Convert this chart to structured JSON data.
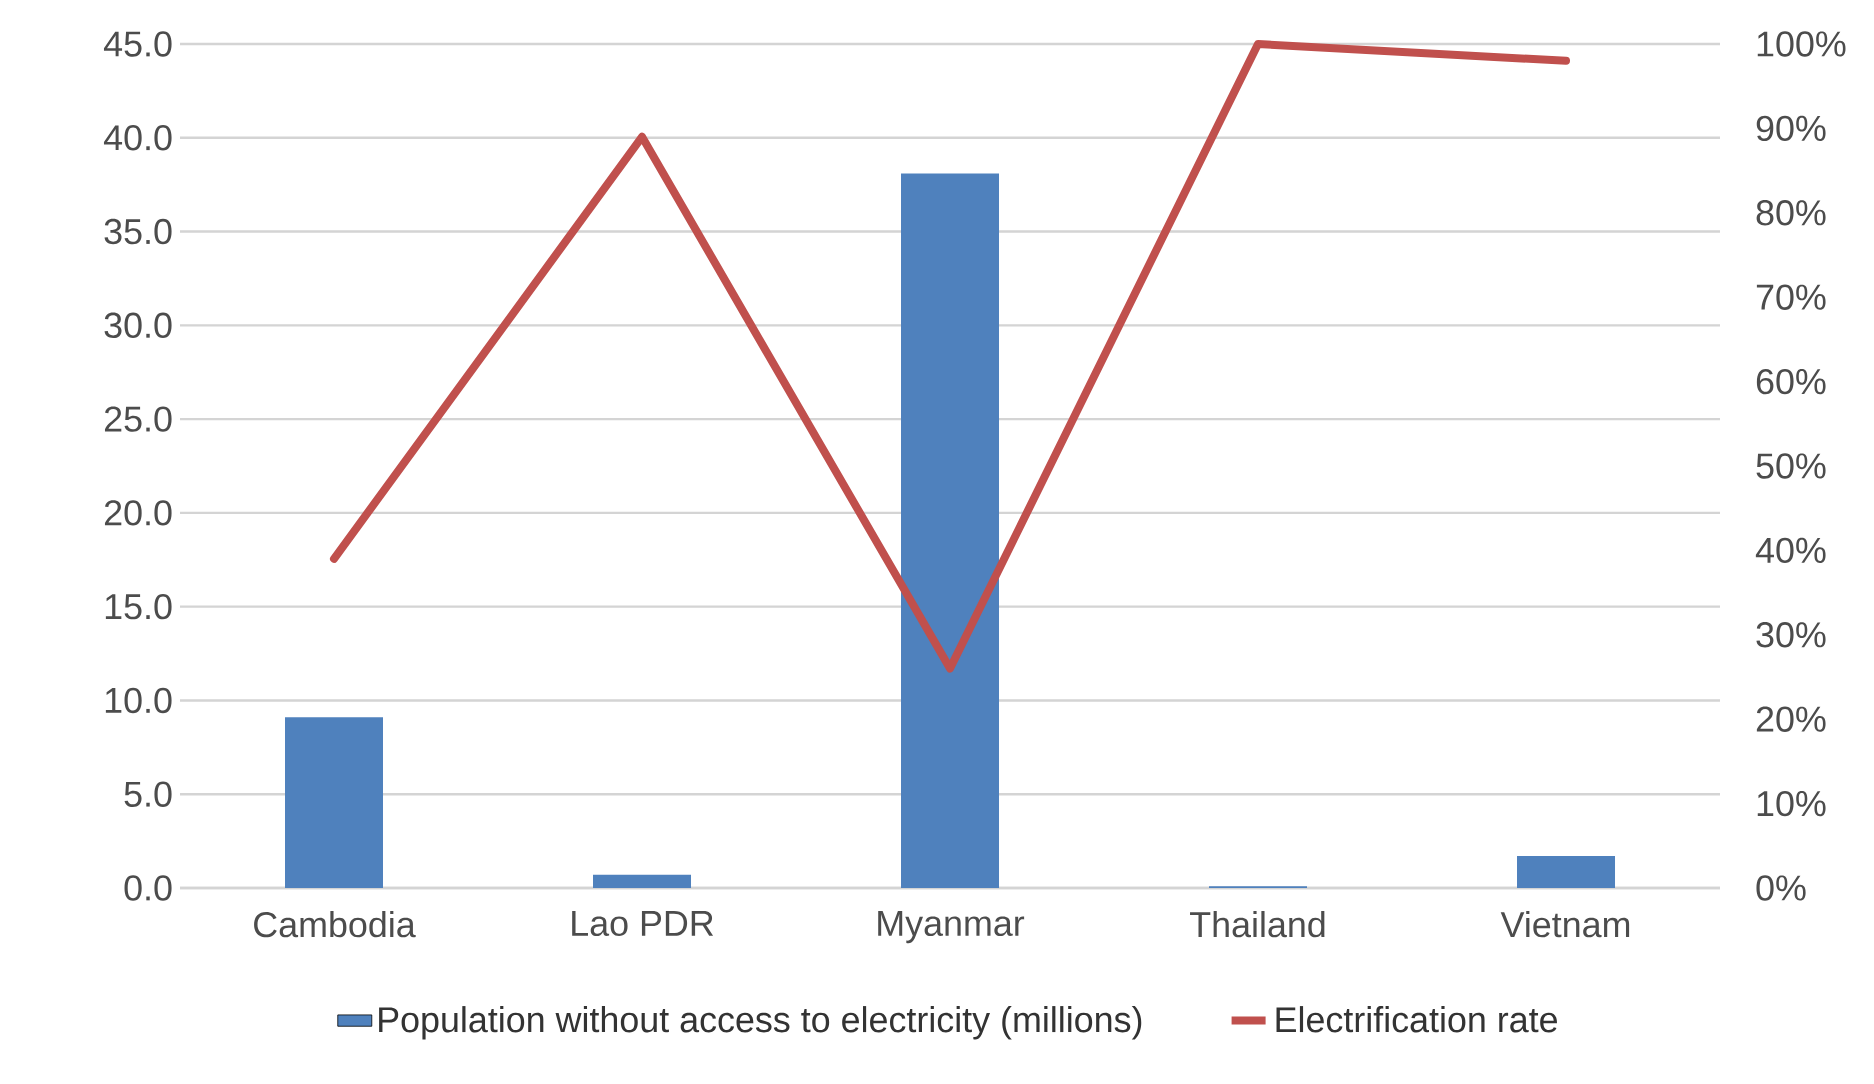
{
  "chart_data": {
    "type": "bar",
    "categories": [
      "Cambodia",
      "Lao PDR",
      "Myanmar",
      "Thailand",
      "Vietnam"
    ],
    "series": [
      {
        "name": "Population without access to electricity (millions)",
        "color": "#4f81bd",
        "values": [
          9.1,
          0.7,
          38.1,
          0.1,
          1.7
        ]
      },
      {
        "name": "Electrification rate",
        "type": "line",
        "axis": "y2",
        "color": "#c0504d",
        "values": [
          39,
          89,
          26,
          100,
          98
        ]
      }
    ],
    "ylim": [
      0,
      45
    ],
    "yticks": [
      {
        "value": 0,
        "label": "0.0"
      },
      {
        "value": 5,
        "label": "5.0"
      },
      {
        "value": 10,
        "label": "10.0"
      },
      {
        "value": 15,
        "label": "15.0"
      },
      {
        "value": 20,
        "label": "20.0"
      },
      {
        "value": 25,
        "label": "25.0"
      },
      {
        "value": 30,
        "label": "30.0"
      },
      {
        "value": 35,
        "label": "35.0"
      },
      {
        "value": 40,
        "label": "40.0"
      },
      {
        "value": 45,
        "label": "45.0"
      }
    ],
    "y2lim": [
      0,
      100
    ],
    "y2ticks": [
      {
        "value": 0,
        "label": "0%"
      },
      {
        "value": 10,
        "label": "10%"
      },
      {
        "value": 20,
        "label": "20%"
      },
      {
        "value": 30,
        "label": "30%"
      },
      {
        "value": 40,
        "label": "40%"
      },
      {
        "value": 50,
        "label": "50%"
      },
      {
        "value": 60,
        "label": "60%"
      },
      {
        "value": 70,
        "label": "70%"
      },
      {
        "value": 80,
        "label": "80%"
      },
      {
        "value": 90,
        "label": "90%"
      },
      {
        "value": 100,
        "label": "100%"
      }
    ],
    "grid": "y",
    "legend": "bottom"
  }
}
